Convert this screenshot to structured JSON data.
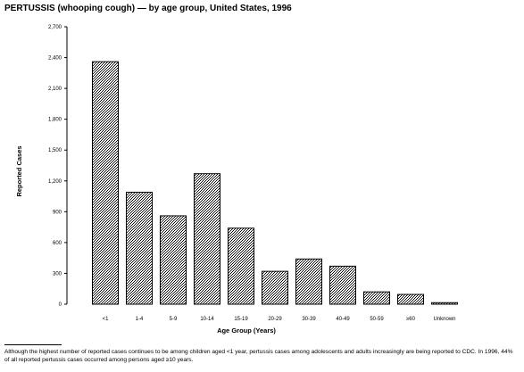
{
  "chart_data": {
    "type": "bar",
    "title": "PERTUSSIS (whooping cough) — by age group, United States, 1996",
    "xlabel": "Age Group (Years)",
    "ylabel": "Reported Cases",
    "categories": [
      "<1",
      "1-4",
      "5-9",
      "10-14",
      "15-19",
      "20-29",
      "30-39",
      "40-49",
      "50-59",
      "≥60",
      "Unknown"
    ],
    "values": [
      2360,
      1090,
      860,
      1270,
      740,
      320,
      440,
      370,
      120,
      95,
      15
    ],
    "y_ticks": [
      0,
      300,
      600,
      900,
      1200,
      1500,
      1800,
      2100,
      2400,
      2700
    ],
    "y_tick_labels": [
      "0",
      "300",
      "600",
      "900",
      "1,200",
      "1,500",
      "1,800",
      "2,100",
      "2,400",
      "2,700"
    ],
    "ylim": [
      0,
      2700
    ],
    "grid": false,
    "legend": false,
    "bar_fill": "crosshatch"
  },
  "footnote": "Although the highest number of reported cases continues to be among children aged <1 year, pertussis cases among adolescents and adults increasingly are being reported to CDC. In 1996, 44% of all reported pertussis cases occurred among persons aged ≥10 years."
}
